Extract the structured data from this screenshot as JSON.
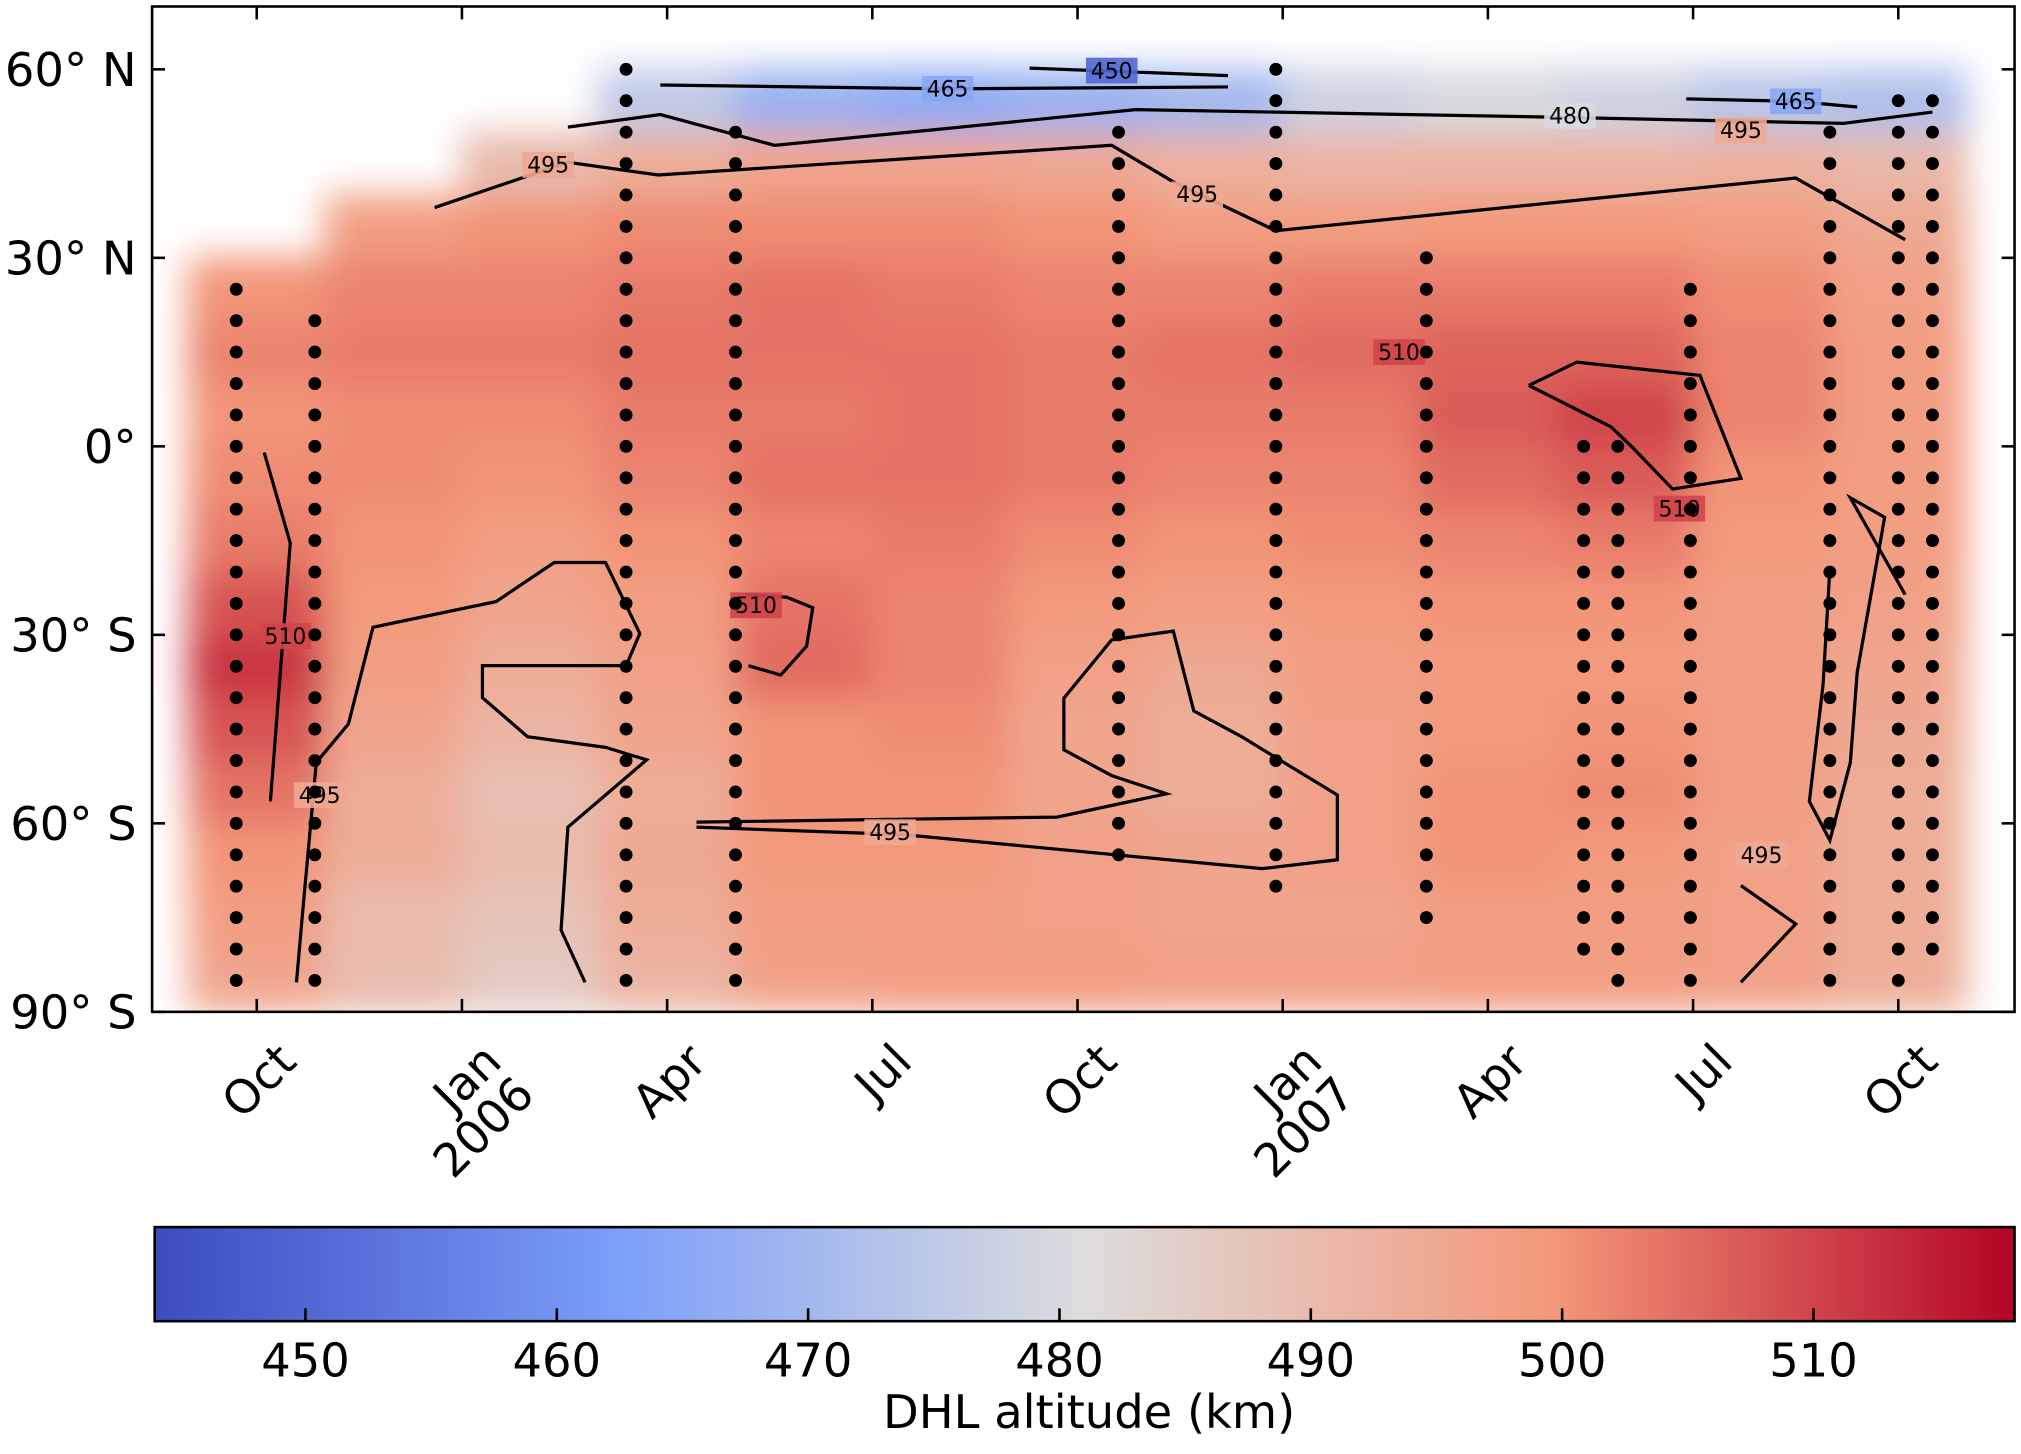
{
  "chart_data": {
    "type": "heatmap",
    "colormap": "coolwarm",
    "xlim": [
      -1.53,
      25.7
    ],
    "ylim": [
      -90,
      70
    ],
    "xticks": [
      {
        "value": 0,
        "label": "Oct"
      },
      {
        "value": 3,
        "label": "Jan\n2006"
      },
      {
        "value": 6,
        "label": "Apr"
      },
      {
        "value": 9,
        "label": "Jul"
      },
      {
        "value": 12,
        "label": "Oct"
      },
      {
        "value": 15,
        "label": "Jan\n2007"
      },
      {
        "value": 18,
        "label": "Apr"
      },
      {
        "value": 21,
        "label": "Jul"
      },
      {
        "value": 24,
        "label": "Oct"
      }
    ],
    "yticks": [
      {
        "value": 60,
        "label": "60° N"
      },
      {
        "value": 30,
        "label": "30° N"
      },
      {
        "value": 0,
        "label": "0°"
      },
      {
        "value": -30,
        "label": "30° S"
      },
      {
        "value": -60,
        "label": "60° S"
      },
      {
        "value": -90,
        "label": "90° S"
      }
    ],
    "heat_x": [
      0,
      2,
      4,
      6,
      8,
      10,
      12,
      14,
      16,
      18,
      20,
      22,
      24
    ],
    "heat_y": [
      -85,
      -75,
      -65,
      -55,
      -45,
      -35,
      -25,
      -15,
      -5,
      5,
      15,
      25,
      35,
      45,
      55
    ],
    "heat_values": [
      [
        496,
        490,
        486,
        492,
        497,
        498,
        498,
        497,
        497,
        498,
        498,
        497,
        494
      ],
      [
        498,
        490,
        488,
        494,
        498,
        498,
        497,
        496,
        496,
        498,
        498,
        497,
        494
      ],
      [
        500,
        494,
        490,
        495,
        499,
        499,
        497,
        496,
        497,
        500,
        499,
        497,
        494
      ],
      [
        504,
        494,
        489,
        494,
        500,
        500,
        496,
        494,
        497,
        500,
        501,
        498,
        494
      ],
      [
        508,
        496,
        492,
        496,
        500,
        501,
        496,
        494,
        497,
        499,
        500,
        498,
        495
      ],
      [
        512,
        498,
        494,
        497,
        505,
        502,
        497,
        495,
        498,
        499,
        499,
        498,
        496
      ],
      [
        508,
        499,
        496,
        498,
        504,
        502,
        499,
        498,
        499,
        500,
        500,
        498,
        497
      ],
      [
        503,
        500,
        498,
        500,
        502,
        503,
        501,
        500,
        501,
        502,
        503,
        499,
        498
      ],
      [
        501,
        501,
        500,
        502,
        504,
        504,
        503,
        502,
        502,
        505,
        507,
        500,
        498
      ],
      [
        500,
        501,
        501,
        503,
        503,
        504,
        503,
        503,
        503,
        507,
        510,
        502,
        498
      ],
      [
        502,
        503,
        503,
        504,
        504,
        504,
        503,
        504,
        505,
        506,
        506,
        502,
        498
      ],
      [
        500,
        502,
        502,
        503,
        504,
        503,
        502,
        502,
        503,
        503,
        503,
        501,
        497
      ],
      [
        null,
        498,
        500,
        501,
        501,
        501,
        500,
        498,
        498,
        499,
        499,
        498,
        495
      ],
      [
        null,
        null,
        490,
        494,
        496,
        496,
        495,
        493,
        492,
        492,
        492,
        493,
        491
      ],
      [
        null,
        null,
        null,
        475,
        468,
        466,
        468,
        470,
        478,
        480,
        478,
        474,
        472
      ]
    ],
    "clim": [
      444,
      518
    ],
    "cticks": [
      450,
      460,
      470,
      480,
      490,
      500,
      510
    ],
    "clabel": "DHL altitude (km)",
    "observations": [
      {
        "x": -0.3,
        "lat": [
          -85,
          -80,
          -75,
          -70,
          -65,
          -60,
          -55,
          -50,
          -45,
          -40,
          -35,
          -30,
          -25,
          -20,
          -15,
          -10,
          -5,
          0,
          5,
          10,
          15,
          20,
          25
        ]
      },
      {
        "x": 0.85,
        "lat": [
          -85,
          -80,
          -75,
          -70,
          -65,
          -60,
          -55,
          -50,
          -45,
          -40,
          -35,
          -30,
          -25,
          -20,
          -15,
          -10,
          -5,
          0,
          5,
          10,
          15,
          20
        ]
      },
      {
        "x": 5.4,
        "lat": [
          -85,
          -80,
          -75,
          -70,
          -65,
          -60,
          -55,
          -50,
          -45,
          -40,
          -35,
          -30,
          -25,
          -20,
          -15,
          -10,
          -5,
          0,
          5,
          10,
          15,
          20,
          25,
          30,
          35,
          40,
          45,
          50,
          55,
          60
        ]
      },
      {
        "x": 7.0,
        "lat": [
          -85,
          -80,
          -75,
          -70,
          -65,
          -60,
          -55,
          -50,
          -45,
          -40,
          -35,
          -30,
          -25,
          -20,
          -15,
          -10,
          -5,
          0,
          5,
          10,
          15,
          20,
          25,
          30,
          35,
          40,
          45,
          50
        ]
      },
      {
        "x": 12.6,
        "lat": [
          -65,
          -60,
          -55,
          -50,
          -45,
          -40,
          -35,
          -30,
          -25,
          -20,
          -15,
          -10,
          -5,
          0,
          5,
          10,
          15,
          20,
          25,
          30,
          35,
          40,
          45,
          50
        ]
      },
      {
        "x": 14.9,
        "lat": [
          -70,
          -65,
          -60,
          -55,
          -50,
          -45,
          -40,
          -35,
          -30,
          -25,
          -20,
          -15,
          -10,
          -5,
          0,
          5,
          10,
          15,
          20,
          25,
          30,
          35,
          40,
          45,
          50,
          55,
          60
        ]
      },
      {
        "x": 17.1,
        "lat": [
          -75,
          -70,
          -65,
          -60,
          -55,
          -50,
          -45,
          -40,
          -35,
          -30,
          -25,
          -20,
          -15,
          -10,
          -5,
          0,
          5,
          10,
          15,
          20,
          25,
          30
        ]
      },
      {
        "x": 19.4,
        "lat": [
          -80,
          -75,
          -70,
          -65,
          -60,
          -55,
          -50,
          -45,
          -40,
          -35,
          -30,
          -25,
          -20,
          -15,
          -10,
          -5,
          0
        ]
      },
      {
        "x": 19.9,
        "lat": [
          -85,
          -80,
          -75,
          -70,
          -65,
          -60,
          -55,
          -50,
          -45,
          -40,
          -35,
          -30,
          -25,
          -20,
          -15,
          -10,
          -5,
          0
        ]
      },
      {
        "x": 20.96,
        "lat": [
          -85,
          -80,
          -75,
          -70,
          -65,
          -60,
          -55,
          -50,
          -45,
          -40,
          -35,
          -30,
          -25,
          -20,
          -15,
          -10,
          -5,
          0,
          5,
          10,
          15,
          20,
          25
        ]
      },
      {
        "x": 23.0,
        "lat": [
          -85,
          -80,
          -75,
          -70,
          -65,
          -60,
          -55,
          -50,
          -45,
          -40,
          -35,
          -30,
          -25,
          -20,
          -15,
          -10,
          -5,
          0,
          5,
          10,
          15,
          20,
          25,
          30,
          35,
          40,
          45,
          50
        ]
      },
      {
        "x": 24.0,
        "lat": [
          -85,
          -80,
          -75,
          -70,
          -65,
          -60,
          -55,
          -50,
          -45,
          -40,
          -35,
          -30,
          -25,
          -20,
          -15,
          -10,
          -5,
          0,
          5,
          10,
          15,
          20,
          25,
          30,
          35,
          40,
          45,
          50,
          55
        ]
      },
      {
        "x": 24.5,
        "lat": [
          -80,
          -75,
          -70,
          -65,
          -60,
          -55,
          -50,
          -45,
          -40,
          -35,
          -30,
          -25,
          -20,
          -15,
          -10,
          -5,
          0,
          5,
          10,
          15,
          20,
          25,
          30,
          35,
          40,
          45,
          50,
          55
        ]
      }
    ],
    "contours": [
      {
        "level": 450,
        "x": [
          11.3,
          14.2
        ],
        "y": [
          60.2,
          59.0
        ]
      },
      {
        "level": 465,
        "x": [
          5.9,
          10.1,
          14.2
        ],
        "y": [
          57.5,
          56.9,
          57.2
        ]
      },
      {
        "level": 465,
        "x": [
          20.9,
          22.5,
          23.4
        ],
        "y": [
          55.3,
          54.9,
          54.0
        ]
      },
      {
        "level": 480,
        "x": [
          4.55,
          5.9,
          7.57,
          9.83,
          12.85,
          18.9,
          23.2,
          24.5
        ],
        "y": [
          50.8,
          52.8,
          47.9,
          50.3,
          53.6,
          52.4,
          51.4,
          53.2
        ]
      },
      {
        "level": 495,
        "x": [
          2.6,
          4.55,
          5.87,
          12.5,
          13.4,
          14.9,
          22.5,
          24.1
        ],
        "y": [
          38,
          45.2,
          43.2,
          47.9,
          42.1,
          34.3,
          42.7,
          32.9
        ]
      },
      {
        "level": 510,
        "x": [
          18.6,
          19.3,
          21.1,
          21.7,
          20.7,
          20.1,
          19.8,
          18.6
        ],
        "y": [
          9.7,
          13.4,
          11.3,
          -5.1,
          -6.8,
          0,
          3.1,
          9.7
        ]
      },
      {
        "level": 510,
        "x": [
          0.11,
          0.49,
          0.2
        ],
        "y": [
          -1,
          -15.4,
          -56.5
        ]
      },
      {
        "level": 495,
        "x": [
          0.58,
          0.68,
          0.87,
          1.34,
          1.7,
          3.5,
          4.35,
          5.1,
          5.6,
          5.4,
          3.3,
          3.3,
          3.96,
          5.1,
          5.7,
          4.55,
          4.45,
          4.8
        ],
        "y": [
          -85.3,
          -73,
          -50.3,
          -44.2,
          -28.8,
          -24.7,
          -18.5,
          -18.5,
          -29.8,
          -34.9,
          -34.9,
          -40,
          -46.2,
          -47.9,
          -49.9,
          -60.6,
          -77,
          -85.3
        ]
      },
      {
        "level": 495,
        "x": [
          6.43,
          11.7,
          13.3,
          12.5,
          11.8,
          11.8,
          12.5,
          13.4,
          13.7,
          14.4,
          15.8,
          15.8,
          14.7,
          9.45,
          6.43
        ],
        "y": [
          -59.8,
          -59,
          -55.3,
          -52.4,
          -48.3,
          -40.1,
          -30.8,
          -29.4,
          -42.1,
          -46.2,
          -55.5,
          -65.8,
          -67.2,
          -61.8,
          -60.6
        ]
      },
      {
        "level": 510,
        "x": [
          7.15,
          7.75,
          8.13,
          8.04,
          7.66,
          7.19
        ],
        "y": [
          -23.6,
          -24,
          -25.7,
          -31.8,
          -36.4,
          -34.9
        ]
      },
      {
        "level": 495,
        "x": [
          24.1,
          23.3,
          23.8,
          23.4,
          23.3,
          23.0,
          22.7,
          22.9,
          23.0
        ],
        "y": [
          -23.6,
          -8.2,
          -11.3,
          -36,
          -50.3,
          -62.7,
          -56.5,
          -38,
          -19.5
        ]
      },
      {
        "level": 495,
        "x": [
          21.7,
          22.5,
          21.7
        ],
        "y": [
          -69.9,
          -76,
          -85.3
        ]
      }
    ],
    "contour_labels": [
      {
        "level": 450,
        "x": 12.5,
        "y": 59.8
      },
      {
        "level": 465,
        "x": 10.1,
        "y": 56.9
      },
      {
        "level": 480,
        "x": 19.2,
        "y": 52.6
      },
      {
        "level": 495,
        "x": 4.26,
        "y": 44.8
      },
      {
        "level": 495,
        "x": 13.75,
        "y": 40.1
      },
      {
        "level": 465,
        "x": 22.5,
        "y": 54.9
      },
      {
        "level": 495,
        "x": 21.7,
        "y": 50.3
      },
      {
        "level": 510,
        "x": 16.7,
        "y": 15
      },
      {
        "level": 510,
        "x": 20.8,
        "y": -9.9
      },
      {
        "level": 510,
        "x": 7.3,
        "y": -25.3
      },
      {
        "level": 510,
        "x": 0.42,
        "y": -30.2
      },
      {
        "level": 495,
        "x": 0.92,
        "y": -55.5
      },
      {
        "level": 495,
        "x": 9.26,
        "y": -61.4
      },
      {
        "level": 495,
        "x": 22,
        "y": -65.1
      }
    ]
  }
}
